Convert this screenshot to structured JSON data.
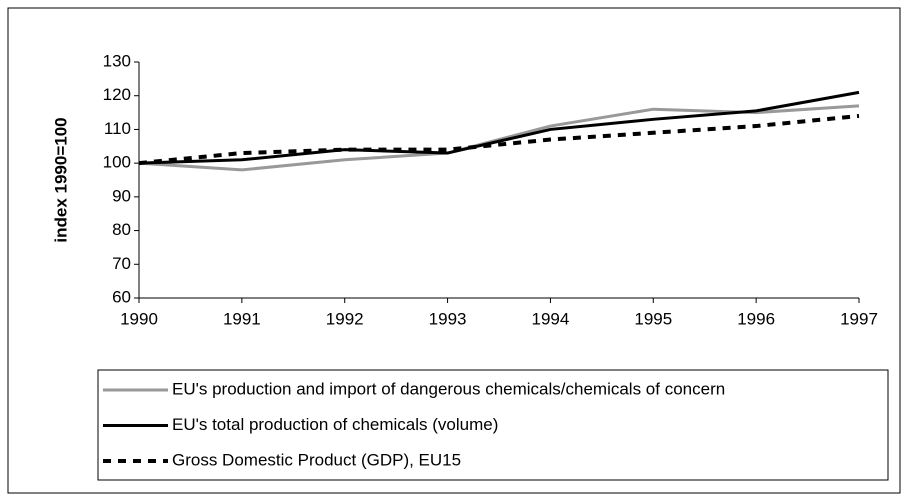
{
  "chart_data": {
    "type": "line",
    "categories": [
      "1990",
      "1991",
      "1992",
      "1993",
      "1994",
      "1995",
      "1996",
      "1997"
    ],
    "y_label": "index 1990=100",
    "ylim": [
      60,
      130
    ],
    "yticks": [
      60,
      70,
      80,
      90,
      100,
      110,
      120,
      130
    ],
    "grid": false,
    "series": [
      {
        "name": "EU's production and import of dangerous chemicals/chemicals of concern",
        "color": "#999999",
        "dash": "solid",
        "values": [
          100,
          98,
          101,
          103,
          111,
          116,
          115,
          117
        ]
      },
      {
        "name": "EU's total production of chemicals (volume)",
        "color": "#000000",
        "dash": "solid",
        "values": [
          100,
          101,
          104,
          103,
          110,
          113,
          115.5,
          121
        ]
      },
      {
        "name": "Gross Domestic Product (GDP), EU15",
        "color": "#000000",
        "dash": "dashed",
        "values": [
          100,
          103,
          104,
          104,
          107,
          109,
          111,
          114
        ]
      }
    ]
  }
}
